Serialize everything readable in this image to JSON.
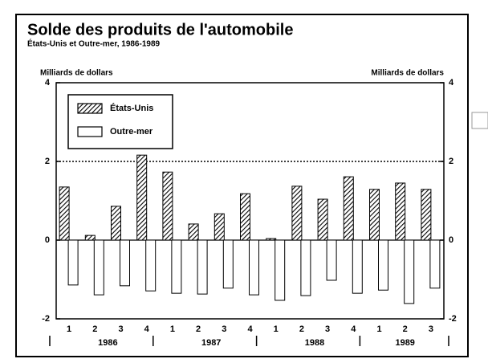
{
  "chart_data": {
    "type": "bar",
    "title": "Solde des produits de l'automobile",
    "subtitle": "États-Unis et Outre-mer, 1986-1989",
    "ylabel": "Milliards de dollars",
    "y2label": "Milliards de dollars",
    "categories": [
      "1",
      "2",
      "3",
      "4",
      "1",
      "2",
      "3",
      "4",
      "1",
      "2",
      "3",
      "4",
      "1",
      "2",
      "3"
    ],
    "years": [
      "1986",
      "1987",
      "1988",
      "1989"
    ],
    "series": [
      {
        "name": "États-Unis",
        "color": "#000000",
        "pattern": "hatch",
        "values": [
          1.35,
          0.12,
          0.86,
          2.16,
          1.73,
          0.41,
          0.67,
          1.18,
          0.04,
          1.37,
          1.04,
          1.61,
          1.29,
          1.45,
          1.29
        ]
      },
      {
        "name": "Outre-mer",
        "color": "#ffffff",
        "values": [
          -1.14,
          -1.39,
          -1.16,
          -1.29,
          -1.35,
          -1.37,
          -1.22,
          -1.39,
          -1.53,
          -1.41,
          -1.02,
          -1.35,
          -1.27,
          -1.61,
          -1.22
        ]
      }
    ],
    "ylim": [
      -2,
      4
    ],
    "yticks": [
      -2,
      0,
      2,
      4
    ],
    "y2lim": [
      -2,
      4
    ],
    "y2ticks": [
      -2,
      0,
      2,
      4
    ],
    "grid": true,
    "legend": "upper left"
  }
}
